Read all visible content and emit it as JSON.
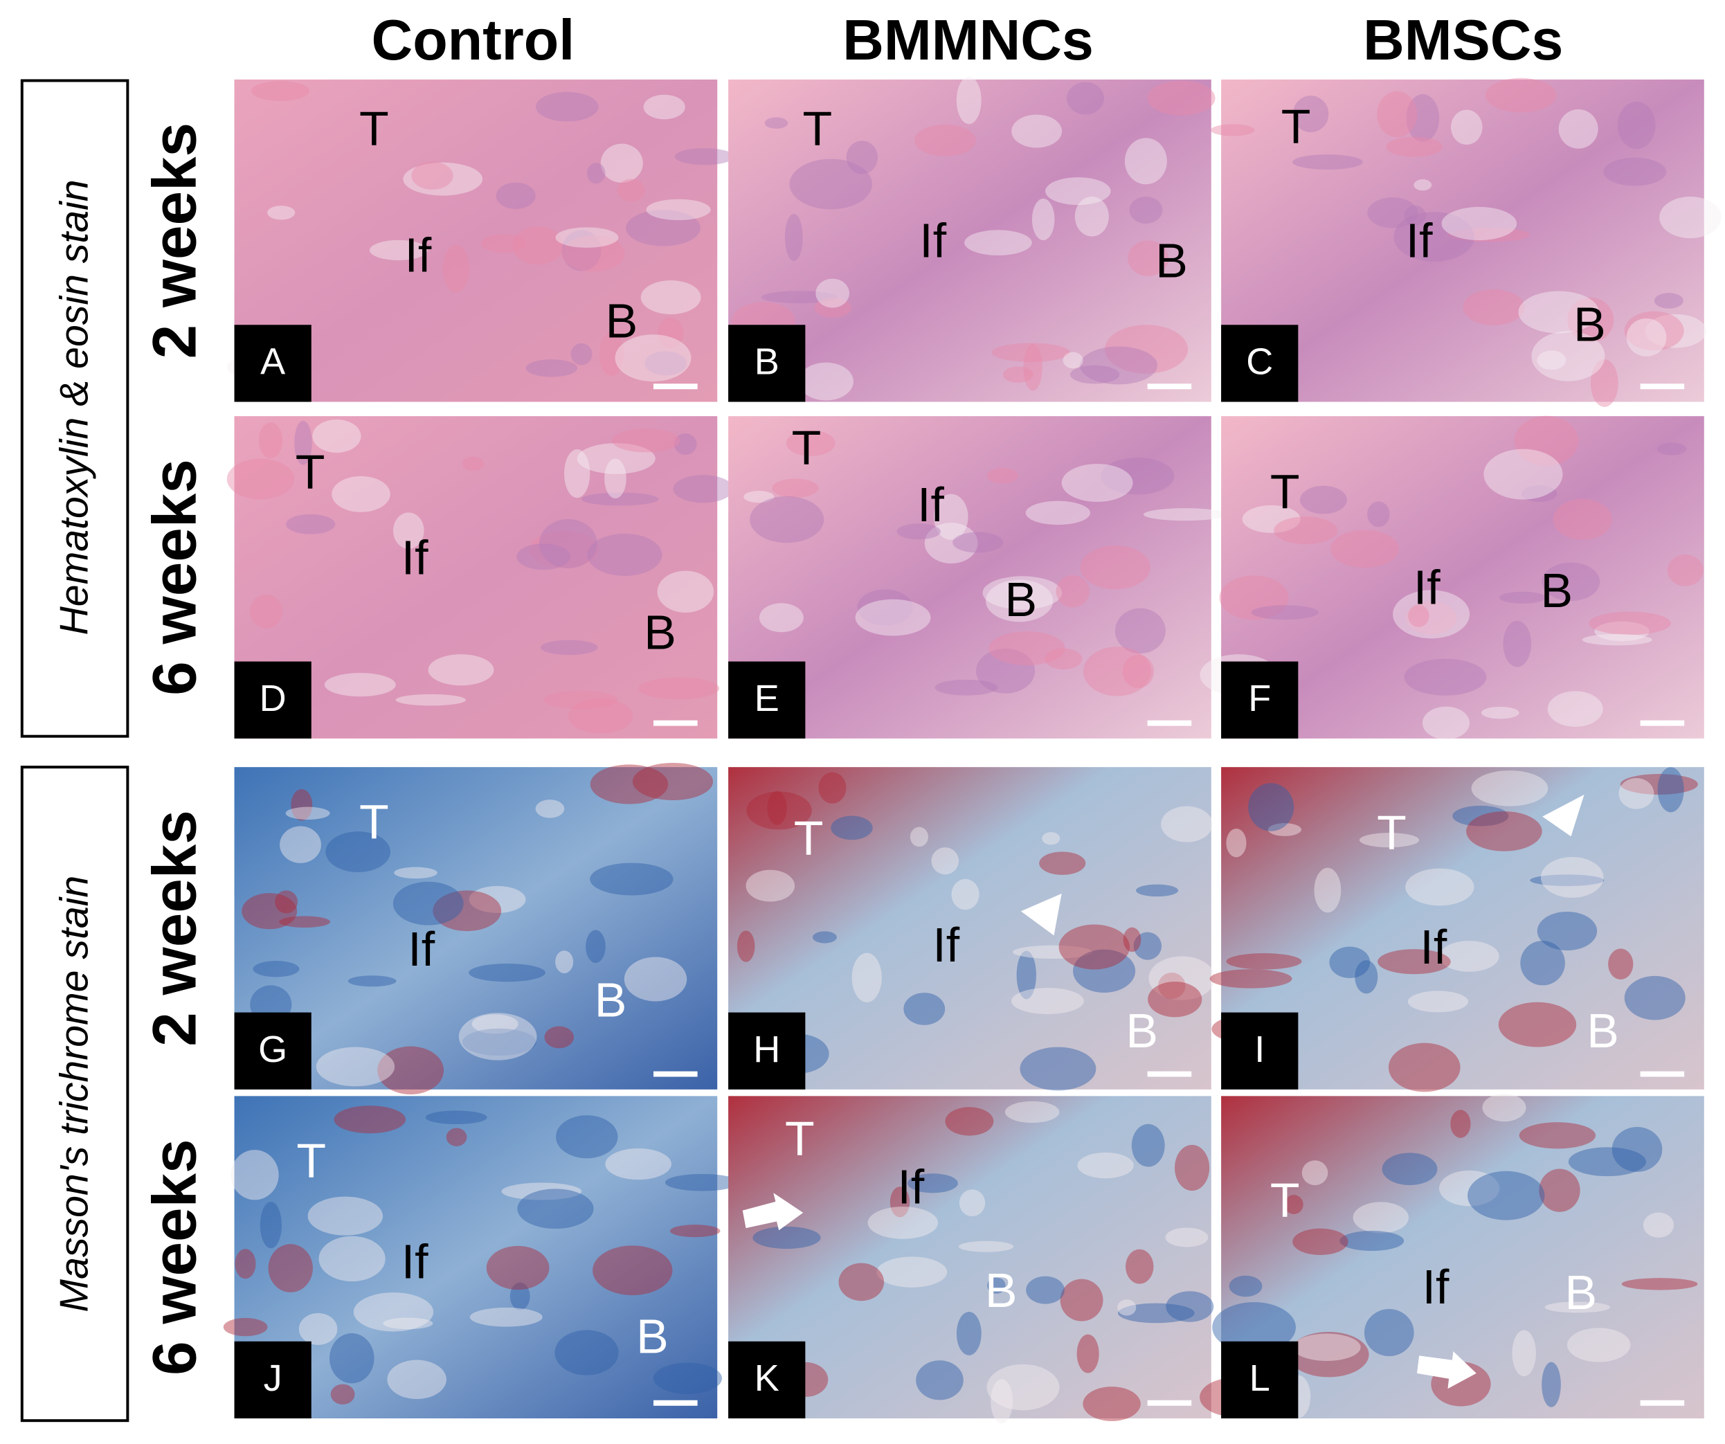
{
  "columns": [
    "Control",
    "BMMNCs",
    "BMSCs"
  ],
  "stains": [
    {
      "label": "Hematoxylin & eosin stain",
      "rows": [
        {
          "label": "2 weeks",
          "panels": [
            {
              "letter": "A",
              "labels": [
                "T",
                "If",
                "B"
              ]
            },
            {
              "letter": "B",
              "labels": [
                "T",
                "If",
                "B"
              ]
            },
            {
              "letter": "C",
              "labels": [
                "T",
                "If",
                "B"
              ]
            }
          ]
        },
        {
          "label": "6 weeks",
          "panels": [
            {
              "letter": "D",
              "labels": [
                "T",
                "If",
                "B"
              ]
            },
            {
              "letter": "E",
              "labels": [
                "T",
                "If",
                "B"
              ]
            },
            {
              "letter": "F",
              "labels": [
                "T",
                "If",
                "B"
              ]
            }
          ]
        }
      ]
    },
    {
      "label": "Masson's trichrome stain",
      "rows": [
        {
          "label": "2 weeks",
          "panels": [
            {
              "letter": "G",
              "labels": [
                "T",
                "If",
                "B"
              ]
            },
            {
              "letter": "H",
              "labels": [
                "T",
                "If",
                "B"
              ]
            },
            {
              "letter": "I",
              "labels": [
                "T",
                "If",
                "B"
              ]
            }
          ]
        },
        {
          "label": "6 weeks",
          "panels": [
            {
              "letter": "J",
              "labels": [
                "T",
                "If",
                "B"
              ]
            },
            {
              "letter": "K",
              "labels": [
                "T",
                "If",
                "B"
              ]
            },
            {
              "letter": "L",
              "labels": [
                "T",
                "If",
                "B"
              ]
            }
          ]
        }
      ]
    }
  ]
}
